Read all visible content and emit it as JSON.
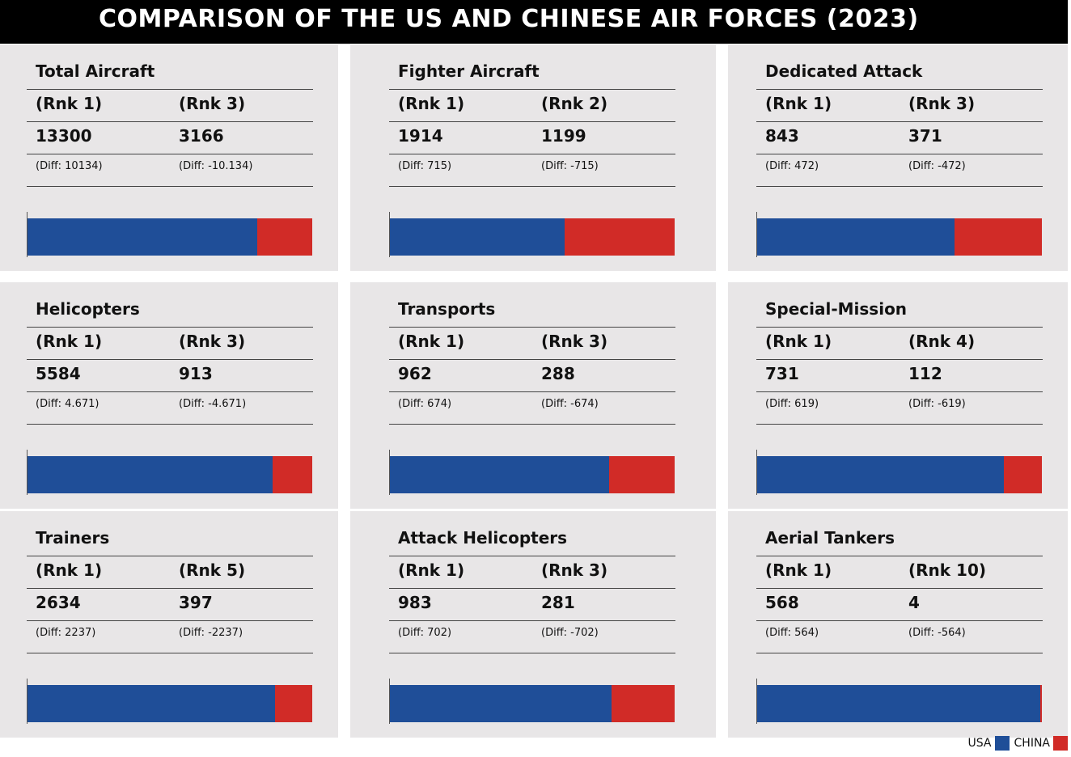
{
  "title": "COMPARISON OF THE US AND CHINESE AIR FORCES (2023)",
  "colors": {
    "usa": "#1f4e98",
    "china": "#d12b27"
  },
  "legend": [
    {
      "label": "USA",
      "color": "#1f4e98"
    },
    {
      "label": "CHINA",
      "color": "#d12b27"
    }
  ],
  "chart_data": {
    "type": "bar",
    "stacked": true,
    "orientation": "horizontal",
    "title": "COMPARISON OF THE US AND CHINESE AIR FORCES (2023)",
    "categories": [
      "Total Aircraft",
      "Fighter Aircraft",
      "Dedicated Attack",
      "Helicopters",
      "Transports",
      "Special-Mission",
      "Trainers",
      "Attack Helicopters",
      "Aerial Tankers"
    ],
    "series": [
      {
        "name": "USA",
        "values": [
          13300,
          1914,
          843,
          5584,
          962,
          731,
          2634,
          983,
          568
        ]
      },
      {
        "name": "CHINA",
        "values": [
          3166,
          1199,
          371,
          913,
          288,
          112,
          397,
          281,
          4
        ]
      }
    ],
    "panels": [
      {
        "name": "Total Aircraft",
        "usa_rank": "(Rnk 1)",
        "china_rank": "(Rnk 3)",
        "usa_value": "13300",
        "china_value": "3166",
        "usa_diff": "(Diff: 10134)",
        "china_diff": "(Diff: -10.134)",
        "usa": 13300,
        "china": 3166
      },
      {
        "name": "Fighter Aircraft",
        "usa_rank": "(Rnk 1)",
        "china_rank": "(Rnk 2)",
        "usa_value": "1914",
        "china_value": "1199",
        "usa_diff": "(Diff: 715)",
        "china_diff": "(Diff: -715)",
        "usa": 1914,
        "china": 1199
      },
      {
        "name": "Dedicated Attack",
        "usa_rank": "(Rnk 1)",
        "china_rank": "(Rnk 3)",
        "usa_value": "843",
        "china_value": "371",
        "usa_diff": "(Diff: 472)",
        "china_diff": "(Diff: -472)",
        "usa": 843,
        "china": 371
      },
      {
        "name": "Helicopters",
        "usa_rank": "(Rnk 1)",
        "china_rank": "(Rnk 3)",
        "usa_value": "5584",
        "china_value": "913",
        "usa_diff": "(Diff: 4.671)",
        "china_diff": "(Diff: -4.671)",
        "usa": 5584,
        "china": 913
      },
      {
        "name": "Transports",
        "usa_rank": "(Rnk 1)",
        "china_rank": "(Rnk 3)",
        "usa_value": "962",
        "china_value": "288",
        "usa_diff": "(Diff: 674)",
        "china_diff": "(Diff: -674)",
        "usa": 962,
        "china": 288
      },
      {
        "name": "Special-Mission",
        "usa_rank": "(Rnk 1)",
        "china_rank": "(Rnk 4)",
        "usa_value": "731",
        "china_value": "112",
        "usa_diff": "(Diff: 619)",
        "china_diff": "(Diff: -619)",
        "usa": 731,
        "china": 112
      },
      {
        "name": "Trainers",
        "usa_rank": "(Rnk 1)",
        "china_rank": "(Rnk 5)",
        "usa_value": "2634",
        "china_value": "397",
        "usa_diff": "(Diff: 2237)",
        "china_diff": "(Diff: -2237)",
        "usa": 2634,
        "china": 397
      },
      {
        "name": "Attack Helicopters",
        "usa_rank": "(Rnk 1)",
        "china_rank": "(Rnk 3)",
        "usa_value": "983",
        "china_value": "281",
        "usa_diff": "(Diff: 702)",
        "china_diff": "(Diff: -702)",
        "usa": 983,
        "china": 281
      },
      {
        "name": "Aerial Tankers",
        "usa_rank": "(Rnk 1)",
        "china_rank": "(Rnk 10)",
        "usa_value": "568",
        "china_value": "4",
        "usa_diff": "(Diff: 564)",
        "china_diff": "(Diff: -564)",
        "usa": 568,
        "china": 4
      }
    ]
  }
}
